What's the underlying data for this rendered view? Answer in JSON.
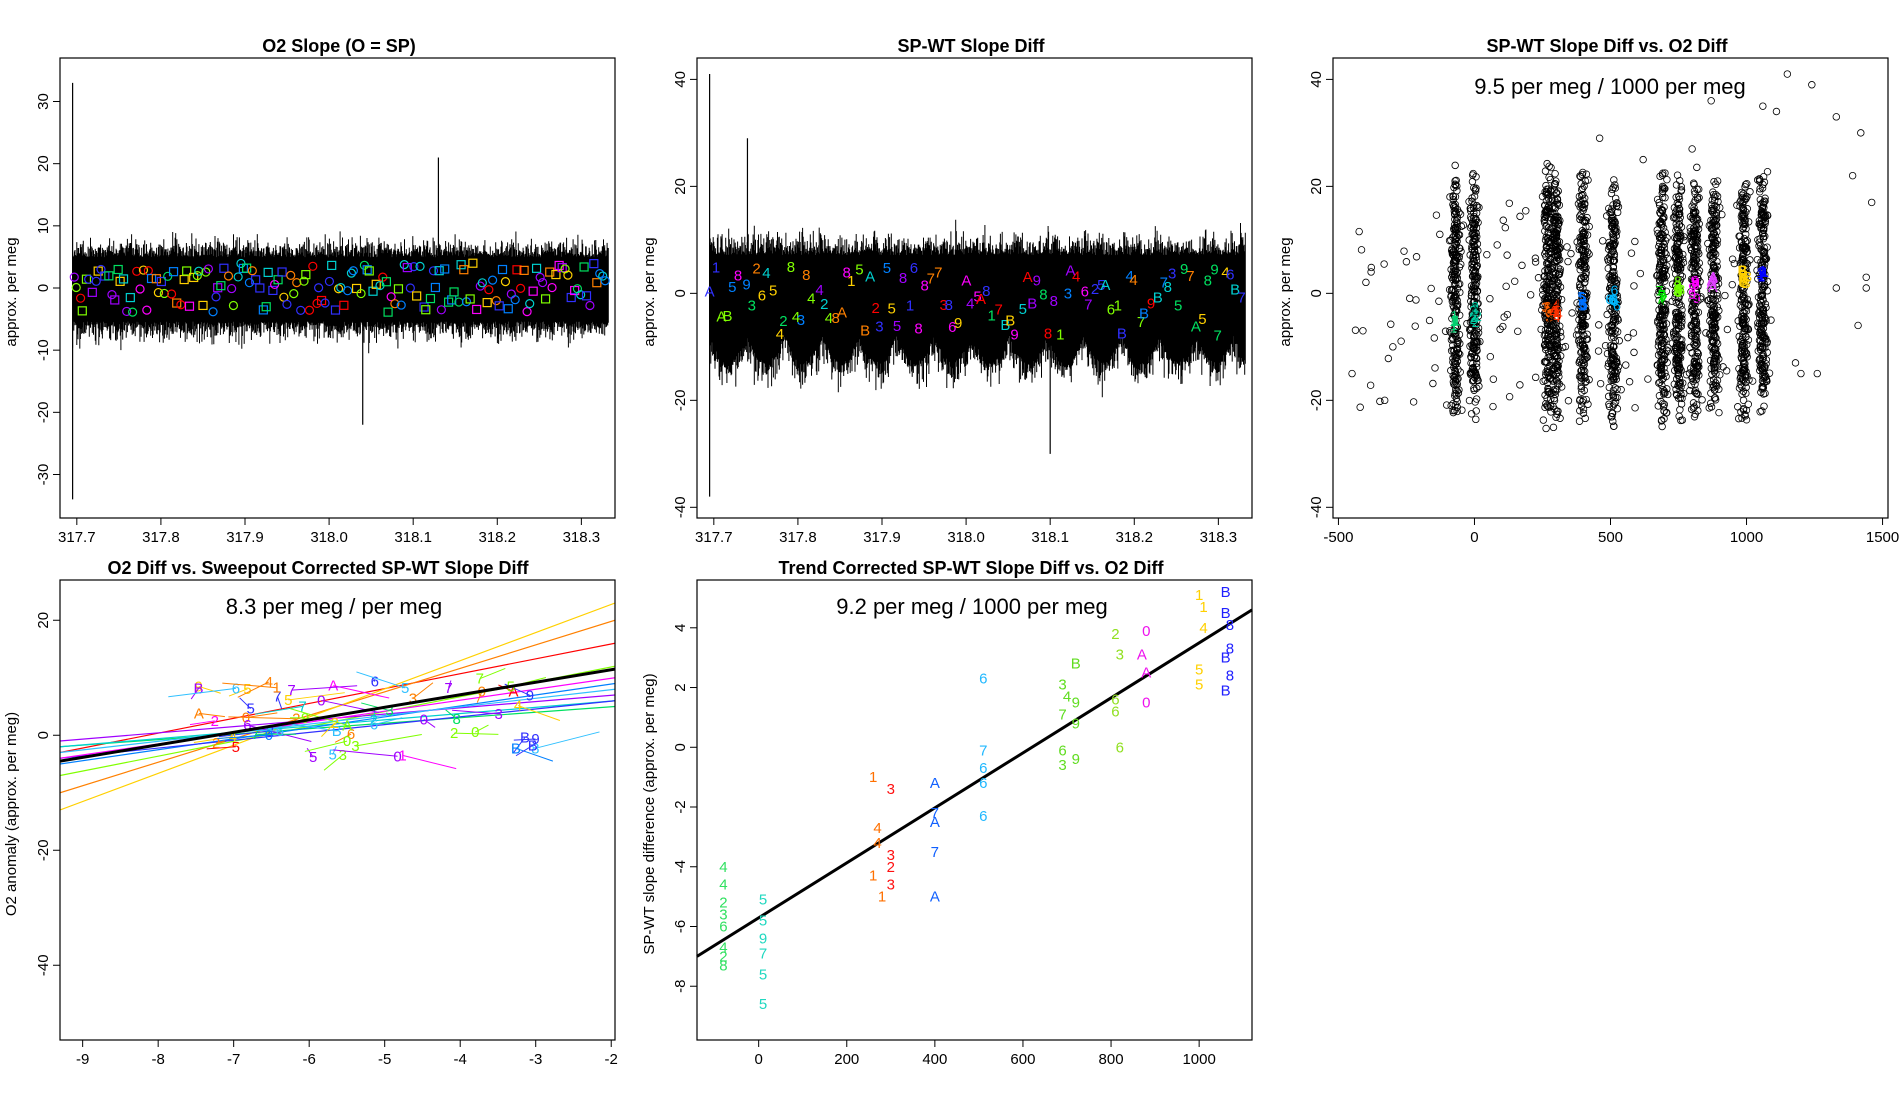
{
  "figure": {
    "background": "#ffffff",
    "ink": "#000000"
  },
  "chart_data": [
    {
      "id": "p1",
      "type": "line",
      "title": "O2 Slope (O = SP)",
      "xlabel": "",
      "ylabel": "approx. per meg",
      "xlim": [
        317.68,
        318.34
      ],
      "ylim": [
        -37,
        37
      ],
      "xticks": [
        317.7,
        317.8,
        317.9,
        318.0,
        318.1,
        318.2,
        318.3
      ],
      "xtick_labels": [
        "317.7",
        "317.8",
        "317.9",
        "318.0",
        "318.1",
        "318.2",
        "318.3"
      ],
      "yticks": [
        -30,
        -20,
        -10,
        0,
        10,
        20,
        30
      ],
      "ytick_labels": [
        "-30",
        "-20",
        "-10",
        "0",
        "10",
        "20",
        "30"
      ],
      "series": [
        {
          "name": "O2 slope",
          "color": "#000000",
          "x_range": [
            317.695,
            318.332
          ],
          "center": 0,
          "halfwidth": 9,
          "spikes": [
            [
              317.695,
              33
            ],
            [
              317.695,
              -34
            ],
            [
              318.04,
              -22
            ],
            [
              318.13,
              21
            ]
          ]
        }
      ],
      "marker": "square/circle",
      "marker_colors": [
        "#ff0000",
        "#ff8000",
        "#ffd700",
        "#80ff00",
        "#00e060",
        "#00d0d0",
        "#0080ff",
        "#3030ff",
        "#a000ff",
        "#ff00ff"
      ],
      "marker_y_range": [
        -4,
        4
      ]
    },
    {
      "id": "p2",
      "type": "line",
      "title": "SP-WT Slope Diff",
      "xlabel": "",
      "ylabel": "approx. per meg",
      "xlim": [
        317.68,
        318.34
      ],
      "ylim": [
        -42,
        44
      ],
      "xticks": [
        317.7,
        317.8,
        317.9,
        318.0,
        318.1,
        318.2,
        318.3
      ],
      "xtick_labels": [
        "317.7",
        "317.8",
        "317.9",
        "318.0",
        "318.1",
        "318.2",
        "318.3"
      ],
      "yticks": [
        -40,
        -20,
        0,
        20,
        40
      ],
      "ytick_labels": [
        "-40",
        "-20",
        "0",
        "20",
        "40"
      ],
      "series": [
        {
          "name": "SP-WT slope diff",
          "color": "#000000",
          "x_range": [
            317.695,
            318.332
          ],
          "center": 0,
          "halfwidth": 13,
          "spikes": [
            [
              317.695,
              41
            ],
            [
              317.695,
              -38
            ],
            [
              317.74,
              29
            ],
            [
              318.1,
              -30
            ]
          ]
        }
      ],
      "marker": "digit labels 1-9, A, B",
      "marker_y_range": [
        -8,
        5
      ]
    },
    {
      "id": "p3",
      "type": "scatter",
      "title": "SP-WT Slope Diff vs. O2 Diff",
      "annotation": "9.5 per meg / 1000 per meg",
      "xlabel": "",
      "ylabel": "approx. per meg",
      "xlim": [
        -520,
        1520
      ],
      "ylim": [
        -42,
        44
      ],
      "xticks": [
        -500,
        0,
        500,
        1000,
        1500
      ],
      "xtick_labels": [
        "-500",
        "0",
        "500",
        "1000",
        "1500"
      ],
      "yticks": [
        -40,
        -20,
        0,
        20,
        40
      ],
      "ytick_labels": [
        "-40",
        "-20",
        "0",
        "20",
        "40"
      ],
      "clusters": [
        -70,
        0,
        270,
        300,
        400,
        510,
        690,
        750,
        810,
        880,
        990,
        1060
      ],
      "cluster_spread": [
        -26,
        25
      ],
      "outliers": [
        [
          1150,
          41
        ],
        [
          1240,
          39
        ],
        [
          1330,
          33
        ],
        [
          1420,
          30
        ],
        [
          1390,
          22
        ],
        [
          1460,
          17
        ],
        [
          1440,
          1
        ],
        [
          1330,
          1
        ],
        [
          1410,
          -6
        ],
        [
          1440,
          3
        ],
        [
          1200,
          -15
        ],
        [
          1260,
          -15
        ],
        [
          1060,
          35
        ],
        [
          1110,
          34
        ],
        [
          870,
          36
        ],
        [
          800,
          27
        ],
        [
          620,
          25
        ],
        [
          460,
          29
        ],
        [
          -380,
          4
        ],
        [
          -450,
          -15
        ],
        [
          -330,
          -20
        ],
        [
          -300,
          -10
        ],
        [
          -410,
          -7
        ],
        [
          1090,
          -5
        ],
        [
          1180,
          -13
        ]
      ],
      "highlight_colors": [
        "#00d070",
        "#00c8a0",
        "#ff6000",
        "#ff3000",
        "#0070ff",
        "#00b8ff",
        "#00e000",
        "#70ff00",
        "#ff00ff",
        "#e040ff",
        "#ffd000",
        "#0000ff"
      ]
    },
    {
      "id": "p4",
      "type": "line",
      "title": "O2 Diff vs. Sweepout Corrected SP-WT Slope Diff",
      "annotation": "8.3 per meg / per meg",
      "xlabel": "",
      "ylabel": "O2 anomaly (approx. per meg)",
      "xlim": [
        -9.3,
        -1.95
      ],
      "ylim": [
        -53,
        27
      ],
      "xticks": [
        -9,
        -8,
        -7,
        -6,
        -5,
        -4,
        -3,
        -2
      ],
      "xtick_labels": [
        "-9",
        "-8",
        "-7",
        "-6",
        "-5",
        "-4",
        "-3",
        "-2"
      ],
      "yticks": [
        -40,
        -20,
        0,
        20
      ],
      "ytick_labels": [
        "-40",
        "-20",
        "0",
        "20"
      ],
      "fit_line": {
        "x": [
          -9.3,
          -1.95
        ],
        "y": [
          -4.5,
          11.5
        ],
        "color": "#000000"
      },
      "series": [
        {
          "name": "1",
          "x": [
            -9.3,
            -1.95
          ],
          "y": [
            -3,
            16
          ]
        },
        {
          "name": "2",
          "x": [
            -9.3,
            -1.95
          ],
          "y": [
            -10,
            20
          ]
        },
        {
          "name": "3",
          "x": [
            -9.3,
            -1.95
          ],
          "y": [
            -13,
            23
          ]
        },
        {
          "name": "4",
          "x": [
            -9.3,
            -1.95
          ],
          "y": [
            -7,
            12
          ]
        },
        {
          "name": "5",
          "x": [
            -9.3,
            -1.95
          ],
          "y": [
            -2,
            5
          ]
        },
        {
          "name": "6",
          "x": [
            -9.3,
            -1.95
          ],
          "y": [
            -2,
            6
          ]
        },
        {
          "name": "7",
          "x": [
            -9.3,
            -1.95
          ],
          "y": [
            -5,
            9
          ]
        },
        {
          "name": "8",
          "x": [
            -9.3,
            -1.95
          ],
          "y": [
            -4,
            6
          ]
        },
        {
          "name": "9",
          "x": [
            -9.3,
            -1.95
          ],
          "y": [
            -1,
            7
          ]
        },
        {
          "name": "A",
          "x": [
            -9.3,
            -1.95
          ],
          "y": [
            -4,
            10
          ]
        },
        {
          "name": "B",
          "x": [
            -9.3,
            -1.95
          ],
          "y": [
            -3,
            8
          ]
        }
      ]
    },
    {
      "id": "p5",
      "type": "scatter",
      "title": "Trend Corrected SP-WT Slope Diff vs. O2 Diff",
      "annotation": "9.2 per meg / 1000 per meg",
      "xlabel": "",
      "ylabel": "SP-WT slope difference (approx. per meg)",
      "xlim": [
        -140,
        1120
      ],
      "ylim": [
        -9.8,
        5.6
      ],
      "xticks": [
        0,
        200,
        400,
        600,
        800,
        1000
      ],
      "xtick_labels": [
        "0",
        "200",
        "400",
        "600",
        "800",
        "1000"
      ],
      "yticks": [
        -8,
        -6,
        -4,
        -2,
        0,
        2,
        4
      ],
      "ytick_labels": [
        "-8",
        "-6",
        "-4",
        "-2",
        "0",
        "2",
        "4"
      ],
      "fit_line": {
        "x": [
          -140,
          1120
        ],
        "y": [
          -7.0,
          4.6
        ],
        "color": "#000000"
      },
      "points": [
        [
          "4",
          -80,
          -4.0
        ],
        [
          "4",
          -80,
          -4.6
        ],
        [
          "2",
          -80,
          -5.2
        ],
        [
          "3",
          -80,
          -5.6
        ],
        [
          "6",
          -80,
          -6.0
        ],
        [
          "4",
          -80,
          -6.7
        ],
        [
          "2",
          -80,
          -7.0
        ],
        [
          "8",
          -80,
          -7.3
        ],
        [
          "5",
          10,
          -5.1
        ],
        [
          "5",
          10,
          -5.8
        ],
        [
          "9",
          10,
          -6.4
        ],
        [
          "7",
          10,
          -6.9
        ],
        [
          "5",
          10,
          -7.6
        ],
        [
          "5",
          10,
          -8.6
        ],
        [
          "1",
          260,
          -1.0
        ],
        [
          "4",
          270,
          -2.7
        ],
        [
          "4",
          270,
          -3.2
        ],
        [
          "1",
          260,
          -4.3
        ],
        [
          "1",
          280,
          -5.0
        ],
        [
          "3",
          300,
          -1.4
        ],
        [
          "3",
          300,
          -3.6
        ],
        [
          "2",
          300,
          -4.0
        ],
        [
          "3",
          300,
          -4.6
        ],
        [
          "A",
          400,
          -1.2
        ],
        [
          "7",
          400,
          -2.2
        ],
        [
          "A",
          400,
          -2.5
        ],
        [
          "7",
          400,
          -3.5
        ],
        [
          "A",
          400,
          -5.0
        ],
        [
          "6",
          510,
          2.3
        ],
        [
          "7",
          510,
          -0.1
        ],
        [
          "6",
          510,
          -0.7
        ],
        [
          "6",
          510,
          -1.2
        ],
        [
          "6",
          510,
          -2.3
        ],
        [
          "3",
          690,
          2.1
        ],
        [
          "4",
          700,
          1.7
        ],
        [
          "7",
          690,
          1.1
        ],
        [
          "6",
          690,
          -0.1
        ],
        [
          "3",
          690,
          -0.6
        ],
        [
          "B",
          720,
          2.8
        ],
        [
          "9",
          720,
          1.5
        ],
        [
          "9",
          720,
          0.8
        ],
        [
          "9",
          720,
          -0.4
        ],
        [
          "2",
          810,
          3.8
        ],
        [
          "3",
          820,
          3.1
        ],
        [
          "6",
          810,
          1.6
        ],
        [
          "6",
          810,
          1.2
        ],
        [
          "6",
          820,
          0.0
        ],
        [
          "0",
          880,
          3.9
        ],
        [
          "A",
          870,
          3.1
        ],
        [
          "A",
          880,
          2.5
        ],
        [
          "0",
          880,
          1.5
        ],
        [
          "1",
          1000,
          5.1
        ],
        [
          "4",
          1010,
          4.0
        ],
        [
          "1",
          1010,
          4.7
        ],
        [
          "5",
          1000,
          2.6
        ],
        [
          "5",
          1000,
          2.1
        ],
        [
          "B",
          1060,
          5.2
        ],
        [
          "B",
          1060,
          4.5
        ],
        [
          "8",
          1070,
          4.1
        ],
        [
          "8",
          1070,
          3.3
        ],
        [
          "B",
          1060,
          3.0
        ],
        [
          "8",
          1070,
          2.4
        ],
        [
          "B",
          1060,
          1.9
        ]
      ]
    }
  ]
}
